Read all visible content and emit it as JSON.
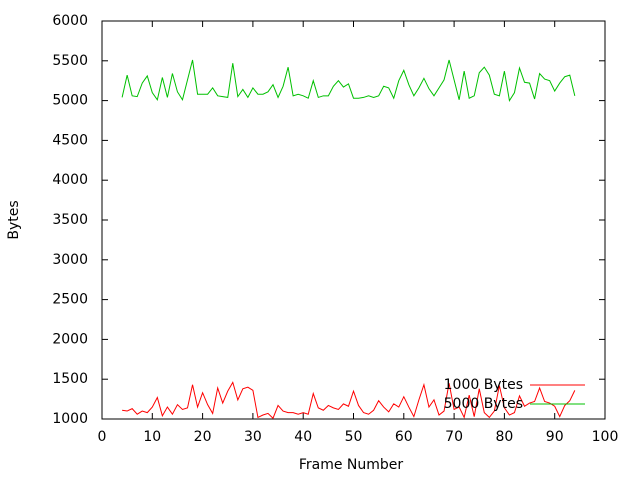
{
  "chart_data": {
    "type": "line",
    "xlabel": "Frame Number",
    "ylabel": "Bytes",
    "x": [
      4,
      5,
      6,
      7,
      8,
      9,
      10,
      11,
      12,
      13,
      14,
      15,
      16,
      17,
      18,
      19,
      20,
      21,
      22,
      23,
      24,
      25,
      26,
      27,
      28,
      29,
      30,
      31,
      32,
      33,
      34,
      35,
      36,
      37,
      38,
      39,
      40,
      41,
      42,
      43,
      44,
      45,
      46,
      47,
      48,
      49,
      50,
      51,
      52,
      53,
      54,
      55,
      56,
      57,
      58,
      59,
      60,
      61,
      62,
      63,
      64,
      65,
      66,
      67,
      68,
      69,
      70,
      71,
      72,
      73,
      74,
      75,
      76,
      77,
      78,
      79,
      80,
      81,
      82,
      83,
      84,
      85,
      86,
      87,
      88,
      89,
      90,
      91,
      92,
      93,
      94
    ],
    "series": [
      {
        "name": "1000 Bytes",
        "color": "#ff0000",
        "values": [
          1110,
          1100,
          1130,
          1060,
          1100,
          1080,
          1150,
          1270,
          1040,
          1150,
          1060,
          1180,
          1120,
          1140,
          1430,
          1150,
          1330,
          1180,
          1070,
          1390,
          1200,
          1350,
          1460,
          1240,
          1380,
          1400,
          1360,
          1020,
          1050,
          1070,
          1010,
          1170,
          1100,
          1080,
          1080,
          1060,
          1080,
          1060,
          1320,
          1140,
          1110,
          1170,
          1140,
          1120,
          1190,
          1160,
          1350,
          1170,
          1080,
          1060,
          1110,
          1230,
          1150,
          1090,
          1190,
          1150,
          1280,
          1150,
          1030,
          1240,
          1430,
          1150,
          1240,
          1050,
          1100,
          1450,
          1120,
          1150,
          1020,
          1300,
          1030,
          1380,
          1080,
          1020,
          1100,
          1420,
          1140,
          1050,
          1080,
          1290,
          1160,
          1200,
          1220,
          1390,
          1220,
          1200,
          1160,
          1030,
          1170,
          1230,
          1360
        ]
      },
      {
        "name": "5000 Bytes",
        "color": "#00c000",
        "values": [
          5040,
          5320,
          5060,
          5050,
          5220,
          5310,
          5100,
          5010,
          5290,
          5040,
          5340,
          5110,
          5010,
          5260,
          5510,
          5080,
          5080,
          5080,
          5160,
          5060,
          5050,
          5040,
          5470,
          5050,
          5140,
          5040,
          5160,
          5080,
          5080,
          5110,
          5200,
          5040,
          5180,
          5420,
          5060,
          5080,
          5060,
          5030,
          5250,
          5040,
          5060,
          5060,
          5180,
          5250,
          5170,
          5210,
          5030,
          5030,
          5040,
          5060,
          5040,
          5060,
          5180,
          5160,
          5030,
          5250,
          5380,
          5200,
          5060,
          5160,
          5280,
          5150,
          5060,
          5160,
          5260,
          5510,
          5260,
          5010,
          5370,
          5030,
          5060,
          5350,
          5420,
          5320,
          5080,
          5060,
          5370,
          5000,
          5100,
          5410,
          5230,
          5220,
          5020,
          5340,
          5270,
          5250,
          5120,
          5220,
          5300,
          5320,
          5060
        ]
      }
    ],
    "xlim": [
      0,
      100
    ],
    "xticks": [
      0,
      10,
      20,
      30,
      40,
      50,
      60,
      70,
      80,
      90,
      100
    ],
    "ylim": [
      1000,
      6000
    ],
    "yticks": [
      1000,
      1500,
      2000,
      2500,
      3000,
      3500,
      4000,
      4500,
      5000,
      5500,
      6000
    ],
    "legend": "bottom right"
  }
}
